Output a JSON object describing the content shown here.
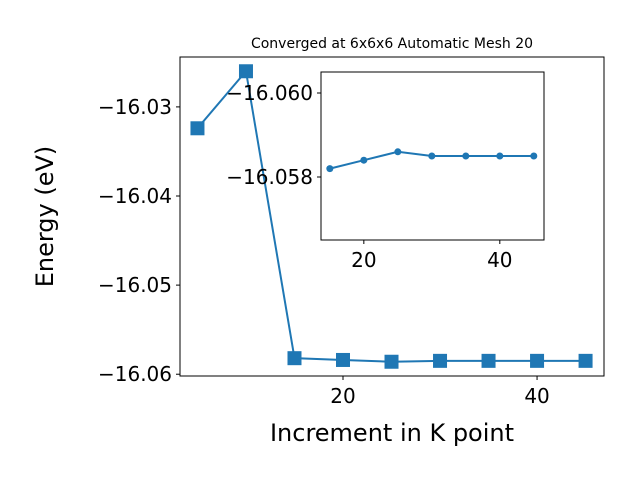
{
  "chart_data": [
    {
      "type": "line",
      "title": "Converged at 6x6x6 Automatic Mesh 20",
      "x_label": "Increment in K point",
      "y_label": "Energy (eV)",
      "x": [
        5,
        10,
        15,
        20,
        25,
        30,
        35,
        40,
        45
      ],
      "series": [
        {
          "color": "#1f77b4",
          "marker": "square",
          "values": [
            -16.0324,
            -16.026,
            -16.0582,
            -16.0584,
            -16.0586,
            -16.0585,
            -16.0585,
            -16.0585,
            -16.0585
          ]
        }
      ],
      "xlim": [
        3.2,
        46.9
      ],
      "xticks": [
        20,
        40
      ],
      "ylim": [
        -16.0602,
        -16.0244
      ],
      "yticks": [
        {
          "value": -16.06,
          "label": "−16.06"
        },
        {
          "value": -16.05,
          "label": "−16.05"
        },
        {
          "value": -16.04,
          "label": "−16.04"
        },
        {
          "value": -16.03,
          "label": "−16.03"
        }
      ]
    },
    {
      "type": "line",
      "x": [
        15,
        20,
        25,
        30,
        35,
        40,
        45
      ],
      "series": [
        {
          "color": "#1f77b4",
          "marker": "circle",
          "values": [
            -16.0582,
            -16.0584,
            -16.0586,
            -16.0585,
            -16.0585,
            -16.0585,
            -16.0585
          ]
        }
      ],
      "xlim": [
        13.7,
        46.5
      ],
      "xticks": [
        20,
        40
      ],
      "ylim": [
        -16.0565,
        -16.0605
      ],
      "y_inverted": true,
      "yticks": [
        {
          "value": -16.058,
          "label": "−16.058"
        },
        {
          "value": -16.06,
          "label": "−16.060"
        }
      ]
    }
  ]
}
